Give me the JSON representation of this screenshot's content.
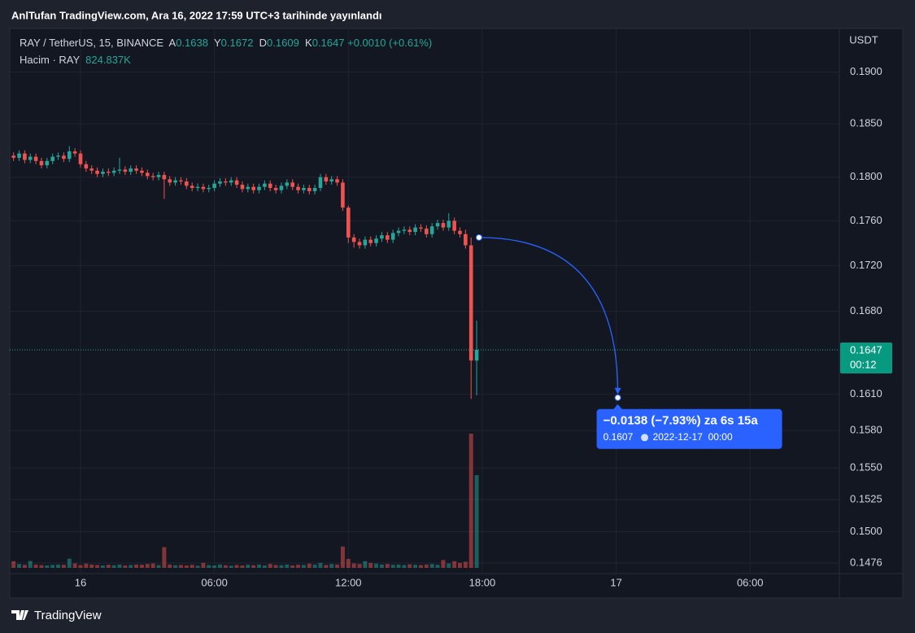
{
  "header": {
    "caption": "AnlTufan TradingView.com, Ara 16, 2022 17:59 UTC+3 tarihinde yayınlandı",
    "brand": "TradingView"
  },
  "chart_data": {
    "type": "candlestick",
    "title": "RAY / TetherUS, 15, BINANCE",
    "ohlc_letters": [
      "A",
      "Y",
      "D",
      "K"
    ],
    "change": "+0.0010 (+0.61%)",
    "volume_title": "Hacim · RAY",
    "volume_label": "824.837K",
    "y_unit": "USDT",
    "countdown": "00:12",
    "log_scale": true,
    "grid": true,
    "up_color": "#26a69a",
    "down_color": "#ef5350",
    "ylim": [
      0.1468,
      0.1943
    ],
    "yticks": [
      {
        "value": 0.19,
        "label": "0.1900"
      },
      {
        "value": 0.185,
        "label": "0.1850"
      },
      {
        "value": 0.18,
        "label": "0.1800"
      },
      {
        "value": 0.176,
        "label": "0.1760"
      },
      {
        "value": 0.172,
        "label": "0.1720"
      },
      {
        "value": 0.168,
        "label": "0.1680"
      },
      {
        "value": 0.161,
        "label": "0.1610"
      },
      {
        "value": 0.158,
        "label": "0.1580"
      },
      {
        "value": 0.155,
        "label": "0.1550"
      },
      0.1525,
      {
        "value": 0.15,
        "label": "0.1500"
      },
      0.1476
    ],
    "xlim": [
      -0.68,
      148
    ],
    "xticks": [
      {
        "value": 12,
        "label": "16"
      },
      {
        "value": 36,
        "label": "06:00"
      },
      {
        "value": 60,
        "label": "12:00"
      },
      {
        "value": 84,
        "label": "18:00"
      },
      {
        "value": 108,
        "label": "17"
      },
      {
        "value": 132,
        "label": "06:00"
      }
    ],
    "open": [
      0.182,
      0.1818,
      0.1822,
      0.1816,
      0.1819,
      0.1815,
      0.1811,
      0.1815,
      0.1819,
      0.182,
      0.1817,
      0.1824,
      0.1822,
      0.1812,
      0.1808,
      0.1806,
      0.1803,
      0.1805,
      0.1804,
      0.1806,
      0.1807,
      0.1805,
      0.1808,
      0.1806,
      0.1804,
      0.1801,
      0.18,
      0.1802,
      0.1798,
      0.1795,
      0.1797,
      0.1796,
      0.1792,
      0.179,
      0.1791,
      0.1789,
      0.179,
      0.1794,
      0.1796,
      0.1795,
      0.1797,
      0.1793,
      0.1789,
      0.1791,
      0.1788,
      0.1791,
      0.1794,
      0.179,
      0.1788,
      0.1792,
      0.1795,
      0.1791,
      0.1788,
      0.179,
      0.1787,
      0.179,
      0.18,
      0.1796,
      0.1798,
      0.1795,
      0.1772,
      0.1745,
      0.1741,
      0.1738,
      0.1743,
      0.174,
      0.1744,
      0.1747,
      0.1743,
      0.1749,
      0.1751,
      0.1752,
      0.175,
      0.1754,
      0.1753,
      0.1748,
      0.1755,
      0.1758,
      0.1754,
      0.176,
      0.1751,
      0.1748,
      0.1738,
      0.1638
    ],
    "high": [
      0.1823,
      0.1825,
      0.1825,
      0.1822,
      0.1822,
      0.1818,
      0.1818,
      0.1822,
      0.1823,
      0.1823,
      0.1829,
      0.1827,
      0.1825,
      0.1815,
      0.1811,
      0.1809,
      0.1808,
      0.1808,
      0.1809,
      0.1818,
      0.181,
      0.1811,
      0.1811,
      0.1809,
      0.1807,
      0.1804,
      0.1805,
      0.1805,
      0.1801,
      0.18,
      0.18,
      0.1799,
      0.1795,
      0.1794,
      0.1794,
      0.1793,
      0.1797,
      0.1799,
      0.1799,
      0.18,
      0.18,
      0.1796,
      0.1794,
      0.1794,
      0.1794,
      0.1797,
      0.1797,
      0.1793,
      0.1795,
      0.1798,
      0.1798,
      0.1794,
      0.1793,
      0.1793,
      0.1793,
      0.1803,
      0.1803,
      0.1801,
      0.1801,
      0.1798,
      0.1774,
      0.1748,
      0.1744,
      0.1746,
      0.1746,
      0.1747,
      0.175,
      0.175,
      0.1752,
      0.1754,
      0.1755,
      0.1755,
      0.1757,
      0.1757,
      0.1756,
      0.1758,
      0.1761,
      0.1761,
      0.1767,
      0.1763,
      0.1754,
      0.1752,
      0.1745,
      0.1672
    ],
    "low": [
      0.1815,
      0.1815,
      0.1813,
      0.1813,
      0.1812,
      0.1808,
      0.1808,
      0.1812,
      0.1816,
      0.1814,
      0.1814,
      0.1819,
      0.1809,
      0.1805,
      0.1803,
      0.18,
      0.18,
      0.1801,
      0.1801,
      0.1803,
      0.1802,
      0.1802,
      0.1803,
      0.1801,
      0.1798,
      0.1797,
      0.1797,
      0.178,
      0.1792,
      0.1792,
      0.1793,
      0.1789,
      0.1787,
      0.1787,
      0.1786,
      0.1786,
      0.1787,
      0.1791,
      0.1792,
      0.1792,
      0.179,
      0.1786,
      0.1786,
      0.1785,
      0.1785,
      0.1788,
      0.1787,
      0.1785,
      0.1785,
      0.1789,
      0.1788,
      0.1785,
      0.1785,
      0.1784,
      0.1784,
      0.1787,
      0.1793,
      0.1793,
      0.1792,
      0.1769,
      0.174,
      0.1736,
      0.1735,
      0.1735,
      0.1737,
      0.1737,
      0.1741,
      0.174,
      0.174,
      0.1746,
      0.1748,
      0.1747,
      0.1747,
      0.175,
      0.1745,
      0.1745,
      0.1752,
      0.1751,
      0.1751,
      0.1748,
      0.1745,
      0.1735,
      0.1606,
      0.1609
    ],
    "close": [
      0.1818,
      0.1822,
      0.1816,
      0.1819,
      0.1815,
      0.1811,
      0.1815,
      0.1819,
      0.182,
      0.1817,
      0.1824,
      0.1822,
      0.1812,
      0.1808,
      0.1806,
      0.1803,
      0.1805,
      0.1804,
      0.1806,
      0.1807,
      0.1805,
      0.1808,
      0.1806,
      0.1804,
      0.1801,
      0.18,
      0.1802,
      0.1798,
      0.1795,
      0.1797,
      0.1796,
      0.1792,
      0.179,
      0.1791,
      0.1789,
      0.179,
      0.1794,
      0.1796,
      0.1795,
      0.1797,
      0.1793,
      0.1789,
      0.1791,
      0.1788,
      0.1791,
      0.1794,
      0.179,
      0.1788,
      0.1792,
      0.1795,
      0.1791,
      0.1788,
      0.179,
      0.1787,
      0.179,
      0.18,
      0.1796,
      0.1798,
      0.1795,
      0.1772,
      0.1745,
      0.1741,
      0.1738,
      0.1743,
      0.174,
      0.1744,
      0.1747,
      0.1743,
      0.1749,
      0.1751,
      0.1752,
      0.175,
      0.1754,
      0.1753,
      0.1748,
      0.1755,
      0.1758,
      0.1754,
      0.176,
      0.1751,
      0.1748,
      0.1738,
      0.1638,
      0.1647
    ],
    "volume": [
      60000,
      35000,
      28000,
      62000,
      30000,
      25000,
      22000,
      27000,
      30000,
      28000,
      82000,
      40000,
      25000,
      38000,
      30000,
      26000,
      22000,
      28000,
      24000,
      30000,
      22000,
      26000,
      30000,
      28000,
      35000,
      40000,
      25000,
      185000,
      30000,
      24000,
      26000,
      22000,
      28000,
      20000,
      45000,
      25000,
      22000,
      30000,
      24000,
      20000,
      26000,
      22000,
      28000,
      24000,
      30000,
      22000,
      35000,
      26000,
      24000,
      30000,
      22000,
      28000,
      26000,
      38000,
      30000,
      45000,
      26000,
      35000,
      30000,
      190000,
      80000,
      40000,
      35000,
      60000,
      45000,
      38000,
      30000,
      35000,
      28000,
      30000,
      26000,
      32000,
      28000,
      25000,
      30000,
      35000,
      28000,
      70000,
      40000,
      60000,
      45000,
      55000,
      1194000,
      824837
    ],
    "annotation": {
      "start": 0.1745,
      "end": 0.1607,
      "start_x": 84,
      "end_x": 108,
      "color": "#2962ff",
      "text": "−0.0138 (−7.93%) za 6s 15a",
      "date": "2022-12-17  00:00"
    }
  }
}
